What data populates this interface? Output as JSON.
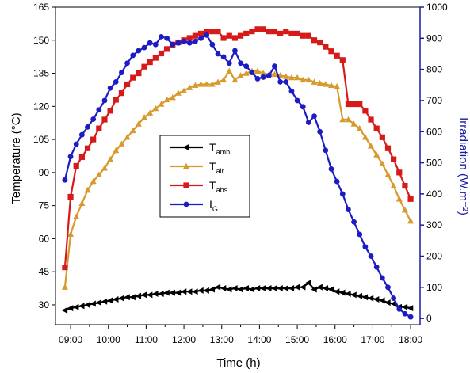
{
  "chart_data": {
    "type": "line",
    "xlabel": "Time (h)",
    "ylabel": "Temperature (°C)",
    "y2label": "Irradiation (W.m⁻²)",
    "x_ticks": [
      "09:00",
      "10:00",
      "11:00",
      "12:00",
      "13:00",
      "14:00",
      "15:00",
      "16:00",
      "17:00",
      "18:00"
    ],
    "x_range_hours": [
      8.6,
      18.25
    ],
    "y_ticks": [
      30,
      45,
      60,
      75,
      90,
      105,
      120,
      135,
      150,
      165
    ],
    "ylim": [
      21,
      165
    ],
    "y2_ticks": [
      0,
      100,
      200,
      300,
      400,
      500,
      600,
      700,
      800,
      900,
      1000
    ],
    "y2lim": [
      -20,
      1000
    ],
    "legend_position": "center-left",
    "colors": {
      "T_amb": "#000000",
      "T_air": "#d69a2d",
      "T_abs": "#d61a1a",
      "I_G": "#1c1cc2",
      "right_axis": "#1a1aa6"
    },
    "series": [
      {
        "name": "T",
        "subscript": "amb",
        "marker": "triangle-left",
        "axis": "left",
        "x": [
          8.85,
          9.0,
          9.15,
          9.3,
          9.45,
          9.6,
          9.75,
          9.9,
          10.05,
          10.2,
          10.35,
          10.5,
          10.65,
          10.8,
          10.95,
          11.1,
          11.25,
          11.4,
          11.55,
          11.7,
          11.85,
          12.0,
          12.15,
          12.3,
          12.45,
          12.6,
          12.75,
          12.9,
          13.05,
          13.2,
          13.35,
          13.5,
          13.65,
          13.8,
          13.95,
          14.1,
          14.25,
          14.4,
          14.55,
          14.7,
          14.85,
          15.0,
          15.15,
          15.3,
          15.45,
          15.6,
          15.75,
          15.9,
          16.05,
          16.2,
          16.35,
          16.5,
          16.65,
          16.8,
          16.95,
          17.1,
          17.25,
          17.4,
          17.55,
          17.7,
          17.85,
          18.0
        ],
        "values": [
          27.5,
          28.5,
          29.0,
          29.5,
          30.0,
          30.5,
          31.0,
          31.5,
          32.0,
          32.5,
          33.0,
          33.5,
          33.5,
          34.0,
          34.5,
          34.5,
          35.0,
          35.0,
          35.5,
          35.5,
          35.5,
          36.0,
          36.0,
          36.0,
          36.5,
          36.5,
          37.0,
          38.0,
          37.5,
          37.0,
          37.5,
          37.0,
          37.5,
          37.0,
          37.5,
          37.5,
          37.5,
          37.5,
          37.5,
          37.5,
          37.5,
          38.0,
          38.0,
          40.0,
          37.0,
          38.0,
          37.5,
          37.0,
          36.0,
          35.5,
          35.0,
          34.5,
          34.0,
          33.5,
          33.0,
          32.5,
          32.0,
          31.0,
          30.5,
          29.0,
          29.0,
          28.5
        ]
      },
      {
        "name": "T",
        "subscript": "air",
        "marker": "triangle-up",
        "axis": "left",
        "x": [
          8.85,
          9.0,
          9.15,
          9.3,
          9.45,
          9.6,
          9.75,
          9.9,
          10.05,
          10.2,
          10.35,
          10.5,
          10.65,
          10.8,
          10.95,
          11.1,
          11.25,
          11.4,
          11.55,
          11.7,
          11.85,
          12.0,
          12.15,
          12.3,
          12.45,
          12.6,
          12.75,
          12.9,
          13.05,
          13.2,
          13.35,
          13.5,
          13.65,
          13.8,
          13.95,
          14.1,
          14.25,
          14.4,
          14.55,
          14.7,
          14.85,
          15.0,
          15.15,
          15.3,
          15.45,
          15.6,
          15.75,
          15.9,
          16.05,
          16.2,
          16.35,
          16.5,
          16.65,
          16.8,
          16.95,
          17.1,
          17.25,
          17.4,
          17.55,
          17.7,
          17.85,
          18.0
        ],
        "values": [
          38,
          62,
          70,
          76,
          82,
          86,
          89,
          92,
          96,
          100,
          103,
          106,
          109,
          112,
          115,
          117,
          119,
          121,
          123,
          124,
          126,
          127,
          128.5,
          129.5,
          130,
          130,
          130,
          131,
          132,
          136,
          132,
          134,
          135,
          136,
          136,
          135,
          134.5,
          134.5,
          134,
          133.5,
          133,
          133,
          132,
          132,
          131,
          130.5,
          130,
          129.5,
          129,
          114,
          114,
          112,
          110,
          106,
          102,
          98,
          94,
          89,
          84,
          78,
          73,
          68
        ]
      },
      {
        "name": "T",
        "subscript": "abs",
        "marker": "square",
        "axis": "left",
        "x": [
          8.85,
          9.0,
          9.15,
          9.3,
          9.45,
          9.6,
          9.75,
          9.9,
          10.05,
          10.2,
          10.35,
          10.5,
          10.65,
          10.8,
          10.95,
          11.1,
          11.25,
          11.4,
          11.55,
          11.7,
          11.85,
          12.0,
          12.15,
          12.3,
          12.45,
          12.6,
          12.75,
          12.9,
          13.05,
          13.2,
          13.35,
          13.5,
          13.65,
          13.8,
          13.95,
          14.1,
          14.25,
          14.4,
          14.55,
          14.7,
          14.85,
          15.0,
          15.15,
          15.3,
          15.45,
          15.6,
          15.75,
          15.9,
          16.05,
          16.2,
          16.35,
          16.5,
          16.65,
          16.8,
          16.95,
          17.1,
          17.25,
          17.4,
          17.55,
          17.7,
          17.85,
          18.0
        ],
        "values": [
          47,
          79,
          93,
          97,
          101,
          105,
          110,
          114,
          118,
          123,
          126,
          130,
          133,
          135,
          138,
          140,
          142,
          144,
          146,
          148,
          149,
          150,
          151,
          152,
          153,
          154,
          154,
          154,
          151,
          152,
          151,
          152,
          153,
          154,
          155,
          155,
          154,
          154,
          153,
          154,
          153,
          153,
          152,
          152,
          150,
          149,
          147,
          145,
          143,
          141,
          121,
          121,
          121,
          118,
          114,
          110,
          106,
          101,
          96,
          90,
          84,
          78
        ]
      },
      {
        "name": "I",
        "subscript": "G",
        "marker": "circle",
        "axis": "right",
        "x": [
          8.85,
          9.0,
          9.15,
          9.3,
          9.45,
          9.6,
          9.75,
          9.9,
          10.05,
          10.2,
          10.35,
          10.5,
          10.65,
          10.8,
          10.95,
          11.1,
          11.25,
          11.4,
          11.55,
          11.7,
          11.85,
          12.0,
          12.15,
          12.3,
          12.45,
          12.6,
          12.75,
          12.9,
          13.05,
          13.2,
          13.35,
          13.5,
          13.65,
          13.8,
          13.95,
          14.1,
          14.25,
          14.4,
          14.55,
          14.7,
          14.85,
          15.0,
          15.15,
          15.3,
          15.45,
          15.6,
          15.75,
          15.9,
          16.05,
          16.2,
          16.35,
          16.5,
          16.65,
          16.8,
          16.95,
          17.1,
          17.25,
          17.4,
          17.55,
          17.7,
          17.85,
          18.0
        ],
        "values": [
          445,
          520,
          560,
          590,
          615,
          640,
          670,
          700,
          740,
          760,
          790,
          820,
          845,
          860,
          870,
          885,
          880,
          905,
          900,
          880,
          885,
          890,
          885,
          890,
          900,
          910,
          880,
          850,
          840,
          820,
          860,
          820,
          810,
          790,
          770,
          775,
          780,
          810,
          760,
          760,
          730,
          700,
          680,
          630,
          650,
          600,
          540,
          480,
          440,
          400,
          350,
          310,
          270,
          230,
          200,
          165,
          130,
          100,
          65,
          30,
          15,
          5
        ]
      }
    ]
  }
}
